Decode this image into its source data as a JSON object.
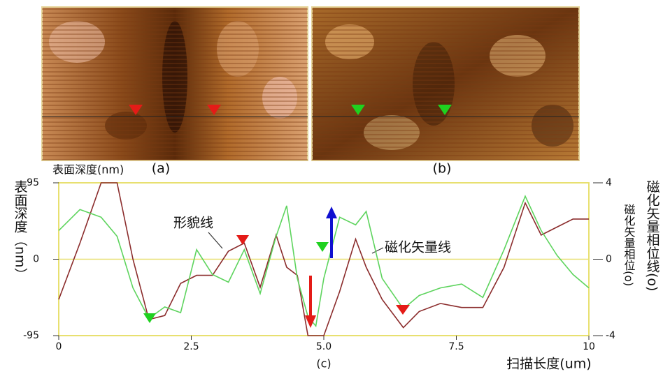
{
  "panels": [
    {
      "label": "(a)"
    },
    {
      "label": "(b)"
    }
  ],
  "chart_data": {
    "type": "line",
    "title": "表面深度(nm)",
    "caption": "(c)",
    "y_label": "表面深度（nm）",
    "y2_label": "磁化矢量相位线(o)",
    "y2_inner_label": "磁化矢量相位(o)",
    "x_label": "扫描长度(um)",
    "x": [
      0,
      0.4,
      0.8,
      1.1,
      1.4,
      1.7,
      2.0,
      2.3,
      2.6,
      2.9,
      3.2,
      3.5,
      3.8,
      4.1,
      4.3,
      4.5,
      4.7,
      4.85,
      5.0,
      5.3,
      5.6,
      5.8,
      6.1,
      6.5,
      6.8,
      7.2,
      7.6,
      8.0,
      8.4,
      8.8,
      9.1,
      9.4,
      9.7,
      10
    ],
    "series": [
      {
        "name": "形貌线",
        "color": "#8b2c2c",
        "values": [
          -50,
          20,
          95,
          95,
          0,
          -75,
          -70,
          -30,
          -20,
          -20,
          10,
          20,
          -35,
          30,
          -10,
          -20,
          -95,
          -95,
          -95,
          -40,
          25,
          -10,
          -50,
          -85,
          -65,
          -55,
          -60,
          -60,
          -10,
          70,
          30,
          40,
          50,
          50
        ]
      },
      {
        "name": "磁化矢量线",
        "color": "#5ed45e",
        "axis": "y2",
        "values": [
          1.5,
          2.6,
          2.2,
          1.2,
          -1.5,
          -3.1,
          -2.5,
          -2.8,
          0.5,
          -0.8,
          -1.2,
          0.5,
          -1.8,
          1.2,
          2.8,
          -1.0,
          -3.0,
          -3.5,
          -1.0,
          2.2,
          1.8,
          2.5,
          -1.0,
          -2.6,
          -1.9,
          -1.5,
          -1.3,
          -2.0,
          0.5,
          3.3,
          1.5,
          0.2,
          -0.8,
          -1.5
        ]
      }
    ],
    "xlim": [
      0,
      10
    ],
    "xticks": [
      0,
      2.5,
      {
        "value": 5,
        "label": "5.0"
      },
      7.5,
      10
    ],
    "ylim": [
      -95,
      95
    ],
    "yticks": [
      -95,
      0,
      95
    ],
    "y2lim": [
      -4,
      4
    ],
    "y2ticks": [
      -4,
      0,
      4
    ],
    "grid": true
  }
}
